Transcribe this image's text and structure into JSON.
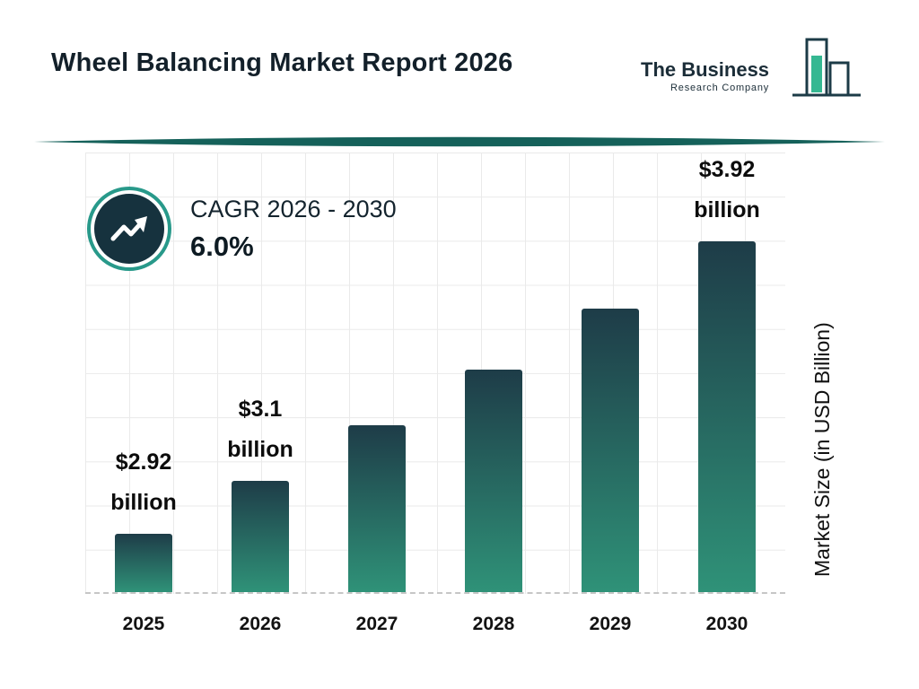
{
  "page": {
    "title": "Wheel Balancing Market Report 2026"
  },
  "logo": {
    "line1": "The Business",
    "line2": "Research Company"
  },
  "cagr": {
    "label": "CAGR 2026 - 2030",
    "value": "6.0%"
  },
  "chart_data": {
    "type": "bar",
    "title": "Wheel Balancing Market Report 2026",
    "categories": [
      "2025",
      "2026",
      "2027",
      "2028",
      "2029",
      "2030"
    ],
    "values": [
      2.92,
      3.1,
      3.29,
      3.48,
      3.69,
      3.92
    ],
    "unit": "USD Billion",
    "ylabel": "Market Size (in USD Billion)",
    "ylim": [
      2.72,
      4.23
    ],
    "grid": true,
    "legend": false,
    "annotations": [
      {
        "index": 0,
        "line1": "$2.92",
        "line2": "billion"
      },
      {
        "index": 1,
        "line1": "$3.1",
        "line2": "billion"
      },
      {
        "index": 5,
        "line1": "$3.92",
        "line2": "billion"
      }
    ],
    "colors": {
      "bar_gradient_top": "#1e3c48",
      "bar_gradient_bottom": "#2f9278",
      "accent_teal": "#28998a",
      "badge_navy": "#16323e",
      "divider_teal": "#15615a",
      "logo_green": "#35b892",
      "logo_navy": "#1c3b47"
    }
  },
  "icons": {
    "badge": "trending-up-arrow-icon",
    "logo": "bar-chart-icon"
  }
}
